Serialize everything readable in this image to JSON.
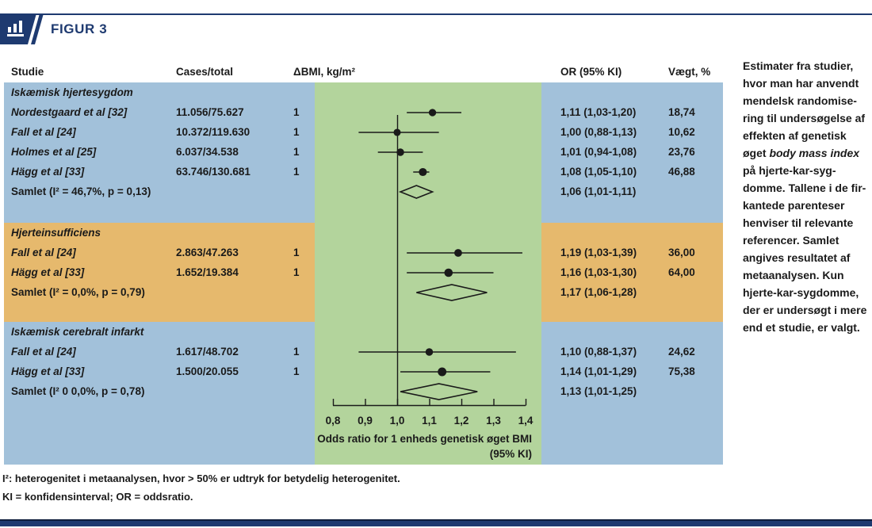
{
  "figure": {
    "label": "FIGUR 3"
  },
  "colors": {
    "navy": "#1e3a70",
    "navy_dark": "#0e1e3c",
    "row_blue": "#a2c1da",
    "row_orange": "#e6b96d",
    "plot_green": "#b3d49c",
    "ink": "#1a1a1a"
  },
  "table": {
    "headers": {
      "study": "Studie",
      "cases": "Cases/total",
      "bmi": "ΔBMI, kg/m²",
      "or": "OR (95% KI)",
      "weight": "Vægt, %"
    },
    "sections": [
      {
        "title": "Iskæmisk hjertesygdom",
        "color": "blue",
        "studies": [
          {
            "study": "Nordestgaard et al [32]",
            "cases": "11.056/75.627",
            "bmi": "1",
            "or_text": "1,11 (1,03-1,20)",
            "weight": "18,74"
          },
          {
            "study": "Fall et al [24]",
            "cases": "10.372/119.630",
            "bmi": "1",
            "or_text": "1,00 (0,88-1,13)",
            "weight": "10,62"
          },
          {
            "study": "Holmes et al [25]",
            "cases": "6.037/34.538",
            "bmi": "1",
            "or_text": "1,01 (0,94-1,08)",
            "weight": "23,76"
          },
          {
            "study": "Hägg et al [33]",
            "cases": "63.746/130.681",
            "bmi": "1",
            "or_text": "1,08 (1,05-1,10)",
            "weight": "46,88"
          }
        ],
        "summary": {
          "label": "Samlet (I² = 46,7%, p = 0,13)",
          "or_text": "1,06 (1,01-1,11)"
        }
      },
      {
        "title": "Hjerteinsufficiens",
        "color": "orange",
        "studies": [
          {
            "study": "Fall et al [24]",
            "cases": "2.863/47.263",
            "bmi": "1",
            "or_text": "1,19 (1,03-1,39)",
            "weight": "36,00"
          },
          {
            "study": "Hägg et al [33]",
            "cases": "1.652/19.384",
            "bmi": "1",
            "or_text": "1,16 (1,03-1,30)",
            "weight": "64,00"
          }
        ],
        "summary": {
          "label": "Samlet (I² = 0,0%, p = 0,79)",
          "or_text": "1,17 (1,06-1,28)"
        }
      },
      {
        "title": "Iskæmisk cerebralt infarkt",
        "color": "blue",
        "studies": [
          {
            "study": "Fall et al [24]",
            "cases": "1.617/48.702",
            "bmi": "1",
            "or_text": "1,10 (0,88-1,37)",
            "weight": "24,62"
          },
          {
            "study": "Hägg et al [33]",
            "cases": "1.500/20.055",
            "bmi": "1",
            "or_text": "1,14 (1,01-1,29)",
            "weight": "75,38"
          }
        ],
        "summary": {
          "label": "Samlet (I² 0 0,0%, p = 0,78)",
          "or_text": "1,13 (1,01-1,25)"
        }
      }
    ]
  },
  "chart_data": {
    "type": "forest",
    "title": "FIGUR 3",
    "xlabel": "Odds ratio for 1 enheds genetisk øget BMI (95% KI)",
    "xlim": [
      0.8,
      1.4
    ],
    "x_ticks": [
      0.8,
      0.9,
      1.0,
      1.1,
      1.2,
      1.3,
      1.4
    ],
    "null_line": 1.0,
    "sections": [
      {
        "name": "Iskæmisk hjertesygdom",
        "studies": [
          {
            "name": "Nordestgaard et al [32]",
            "cases": "11.056/75.627",
            "delta_bmi": 1,
            "or": 1.11,
            "ci": [
              1.03,
              1.2
            ],
            "weight_pct": 18.74
          },
          {
            "name": "Fall et al [24]",
            "cases": "10.372/119.630",
            "delta_bmi": 1,
            "or": 1.0,
            "ci": [
              0.88,
              1.13
            ],
            "weight_pct": 10.62
          },
          {
            "name": "Holmes et al [25]",
            "cases": "6.037/34.538",
            "delta_bmi": 1,
            "or": 1.01,
            "ci": [
              0.94,
              1.08
            ],
            "weight_pct": 23.76
          },
          {
            "name": "Hägg et al [33]",
            "cases": "63.746/130.681",
            "delta_bmi": 1,
            "or": 1.08,
            "ci": [
              1.05,
              1.1
            ],
            "weight_pct": 46.88
          }
        ],
        "summary": {
          "or": 1.06,
          "ci": [
            1.01,
            1.11
          ],
          "i2": "46,7%",
          "p": "0,13"
        }
      },
      {
        "name": "Hjerteinsufficiens",
        "studies": [
          {
            "name": "Fall et al [24]",
            "cases": "2.863/47.263",
            "delta_bmi": 1,
            "or": 1.19,
            "ci": [
              1.03,
              1.39
            ],
            "weight_pct": 36.0
          },
          {
            "name": "Hägg et al [33]",
            "cases": "1.652/19.384",
            "delta_bmi": 1,
            "or": 1.16,
            "ci": [
              1.03,
              1.3
            ],
            "weight_pct": 64.0
          }
        ],
        "summary": {
          "or": 1.17,
          "ci": [
            1.06,
            1.28
          ],
          "i2": "0,0%",
          "p": "0,79"
        }
      },
      {
        "name": "Iskæmisk cerebralt infarkt",
        "studies": [
          {
            "name": "Fall et al [24]",
            "cases": "1.617/48.702",
            "delta_bmi": 1,
            "or": 1.1,
            "ci": [
              0.88,
              1.37
            ],
            "weight_pct": 24.62
          },
          {
            "name": "Hägg et al [33]",
            "cases": "1.500/20.055",
            "delta_bmi": 1,
            "or": 1.14,
            "ci": [
              1.01,
              1.29
            ],
            "weight_pct": 75.38
          }
        ],
        "summary": {
          "or": 1.13,
          "ci": [
            1.01,
            1.25
          ],
          "i2": "0,0%",
          "p": "0,78"
        }
      }
    ]
  },
  "axis": {
    "ticks": [
      {
        "v": 0.8,
        "label": "0,8"
      },
      {
        "v": 0.9,
        "label": "0,9"
      },
      {
        "v": 1.0,
        "label": "1,0"
      },
      {
        "v": 1.1,
        "label": "1,1"
      },
      {
        "v": 1.2,
        "label": "1,2"
      },
      {
        "v": 1.3,
        "label": "1,3"
      },
      {
        "v": 1.4,
        "label": "1,4"
      }
    ],
    "caption_line1": "Odds ratio for 1 enheds genetisk øget BMI",
    "caption_line2": "(95% KI)"
  },
  "sidebar": {
    "lines": [
      [
        {
          "t": "Estimater fra studier,"
        }
      ],
      [
        {
          "t": "hvor man har anvendt"
        }
      ],
      [
        {
          "t": "mendelsk randomise-"
        }
      ],
      [
        {
          "t": "ring til undersøgelse af"
        }
      ],
      [
        {
          "t": "effekten af genetisk"
        }
      ],
      [
        {
          "t": "øget "
        },
        {
          "t": "body mass index",
          "i": true
        }
      ],
      [
        {
          "t": "på hjerte-kar-syg-"
        }
      ],
      [
        {
          "t": "domme. Tallene i de fir-"
        }
      ],
      [
        {
          "t": "kantede parenteser"
        }
      ],
      [
        {
          "t": "henviser til relevante"
        }
      ],
      [
        {
          "t": "referencer. Samlet"
        }
      ],
      [
        {
          "t": "angives resultatet af"
        }
      ],
      [
        {
          "t": "metaanalysen. Kun"
        }
      ],
      [
        {
          "t": "hjerte-kar-sygdomme,"
        }
      ],
      [
        {
          "t": "der er undersøgt i mere"
        }
      ],
      [
        {
          "t": "end et studie, er valgt."
        }
      ]
    ]
  },
  "footnotes": [
    "I²: heterogenitet i metaanalysen, hvor > 50% er udtryk for betydelig heterogenitet.",
    "KI = konfidensinterval;  OR = oddsratio."
  ]
}
